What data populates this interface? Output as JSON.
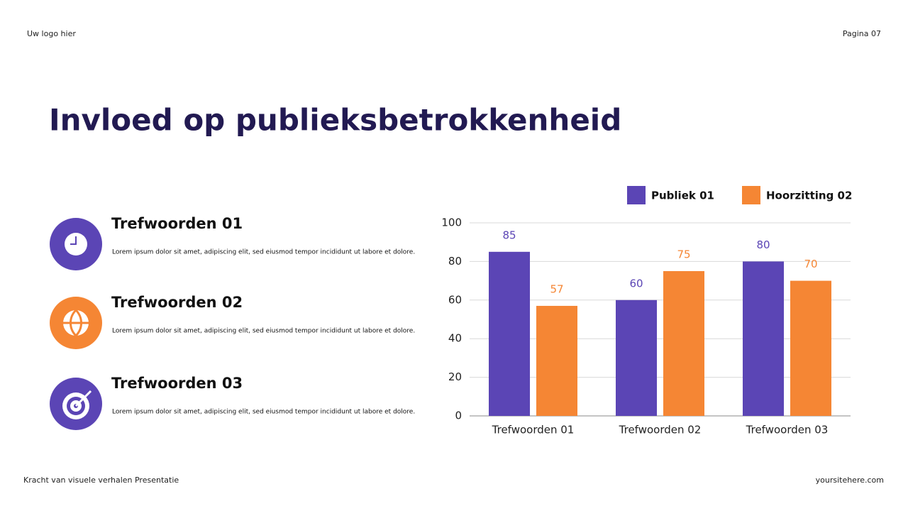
{
  "header": {
    "logo": "Uw logo hier",
    "page": "Pagina 07"
  },
  "title": "Invloed op publieksbetrokkenheid",
  "items": [
    {
      "title": "Trefwoorden 01",
      "text": "Lorem ipsum dolor sit amet, adipiscing elit, sed eiusmod tempor incididunt ut labore et dolore."
    },
    {
      "title": "Trefwoorden 02",
      "text": "Lorem ipsum dolor sit amet, adipiscing elit, sed eiusmod tempor incididunt ut labore et dolore."
    },
    {
      "title": "Trefwoorden 03",
      "text": "Lorem ipsum dolor sit amet, adipiscing elit, sed eiusmod tempor incididunt ut labore et dolore."
    }
  ],
  "footer": {
    "left": "Kracht van visuele verhalen Presentatie",
    "right": "yoursitehere.com"
  },
  "chart_data": {
    "type": "bar",
    "categories": [
      "Trefwoorden 01",
      "Trefwoorden 02",
      "Trefwoorden 03"
    ],
    "series": [
      {
        "name": "Publiek 01",
        "color": "#5b45b5",
        "values": [
          85,
          60,
          80
        ]
      },
      {
        "name": "Hoorzitting 02",
        "color": "#f58634",
        "values": [
          57,
          75,
          70
        ]
      }
    ],
    "ylim": [
      0,
      100
    ],
    "yticks": [
      0,
      20,
      40,
      60,
      80,
      100
    ],
    "grid": true,
    "legend": "top-right"
  }
}
